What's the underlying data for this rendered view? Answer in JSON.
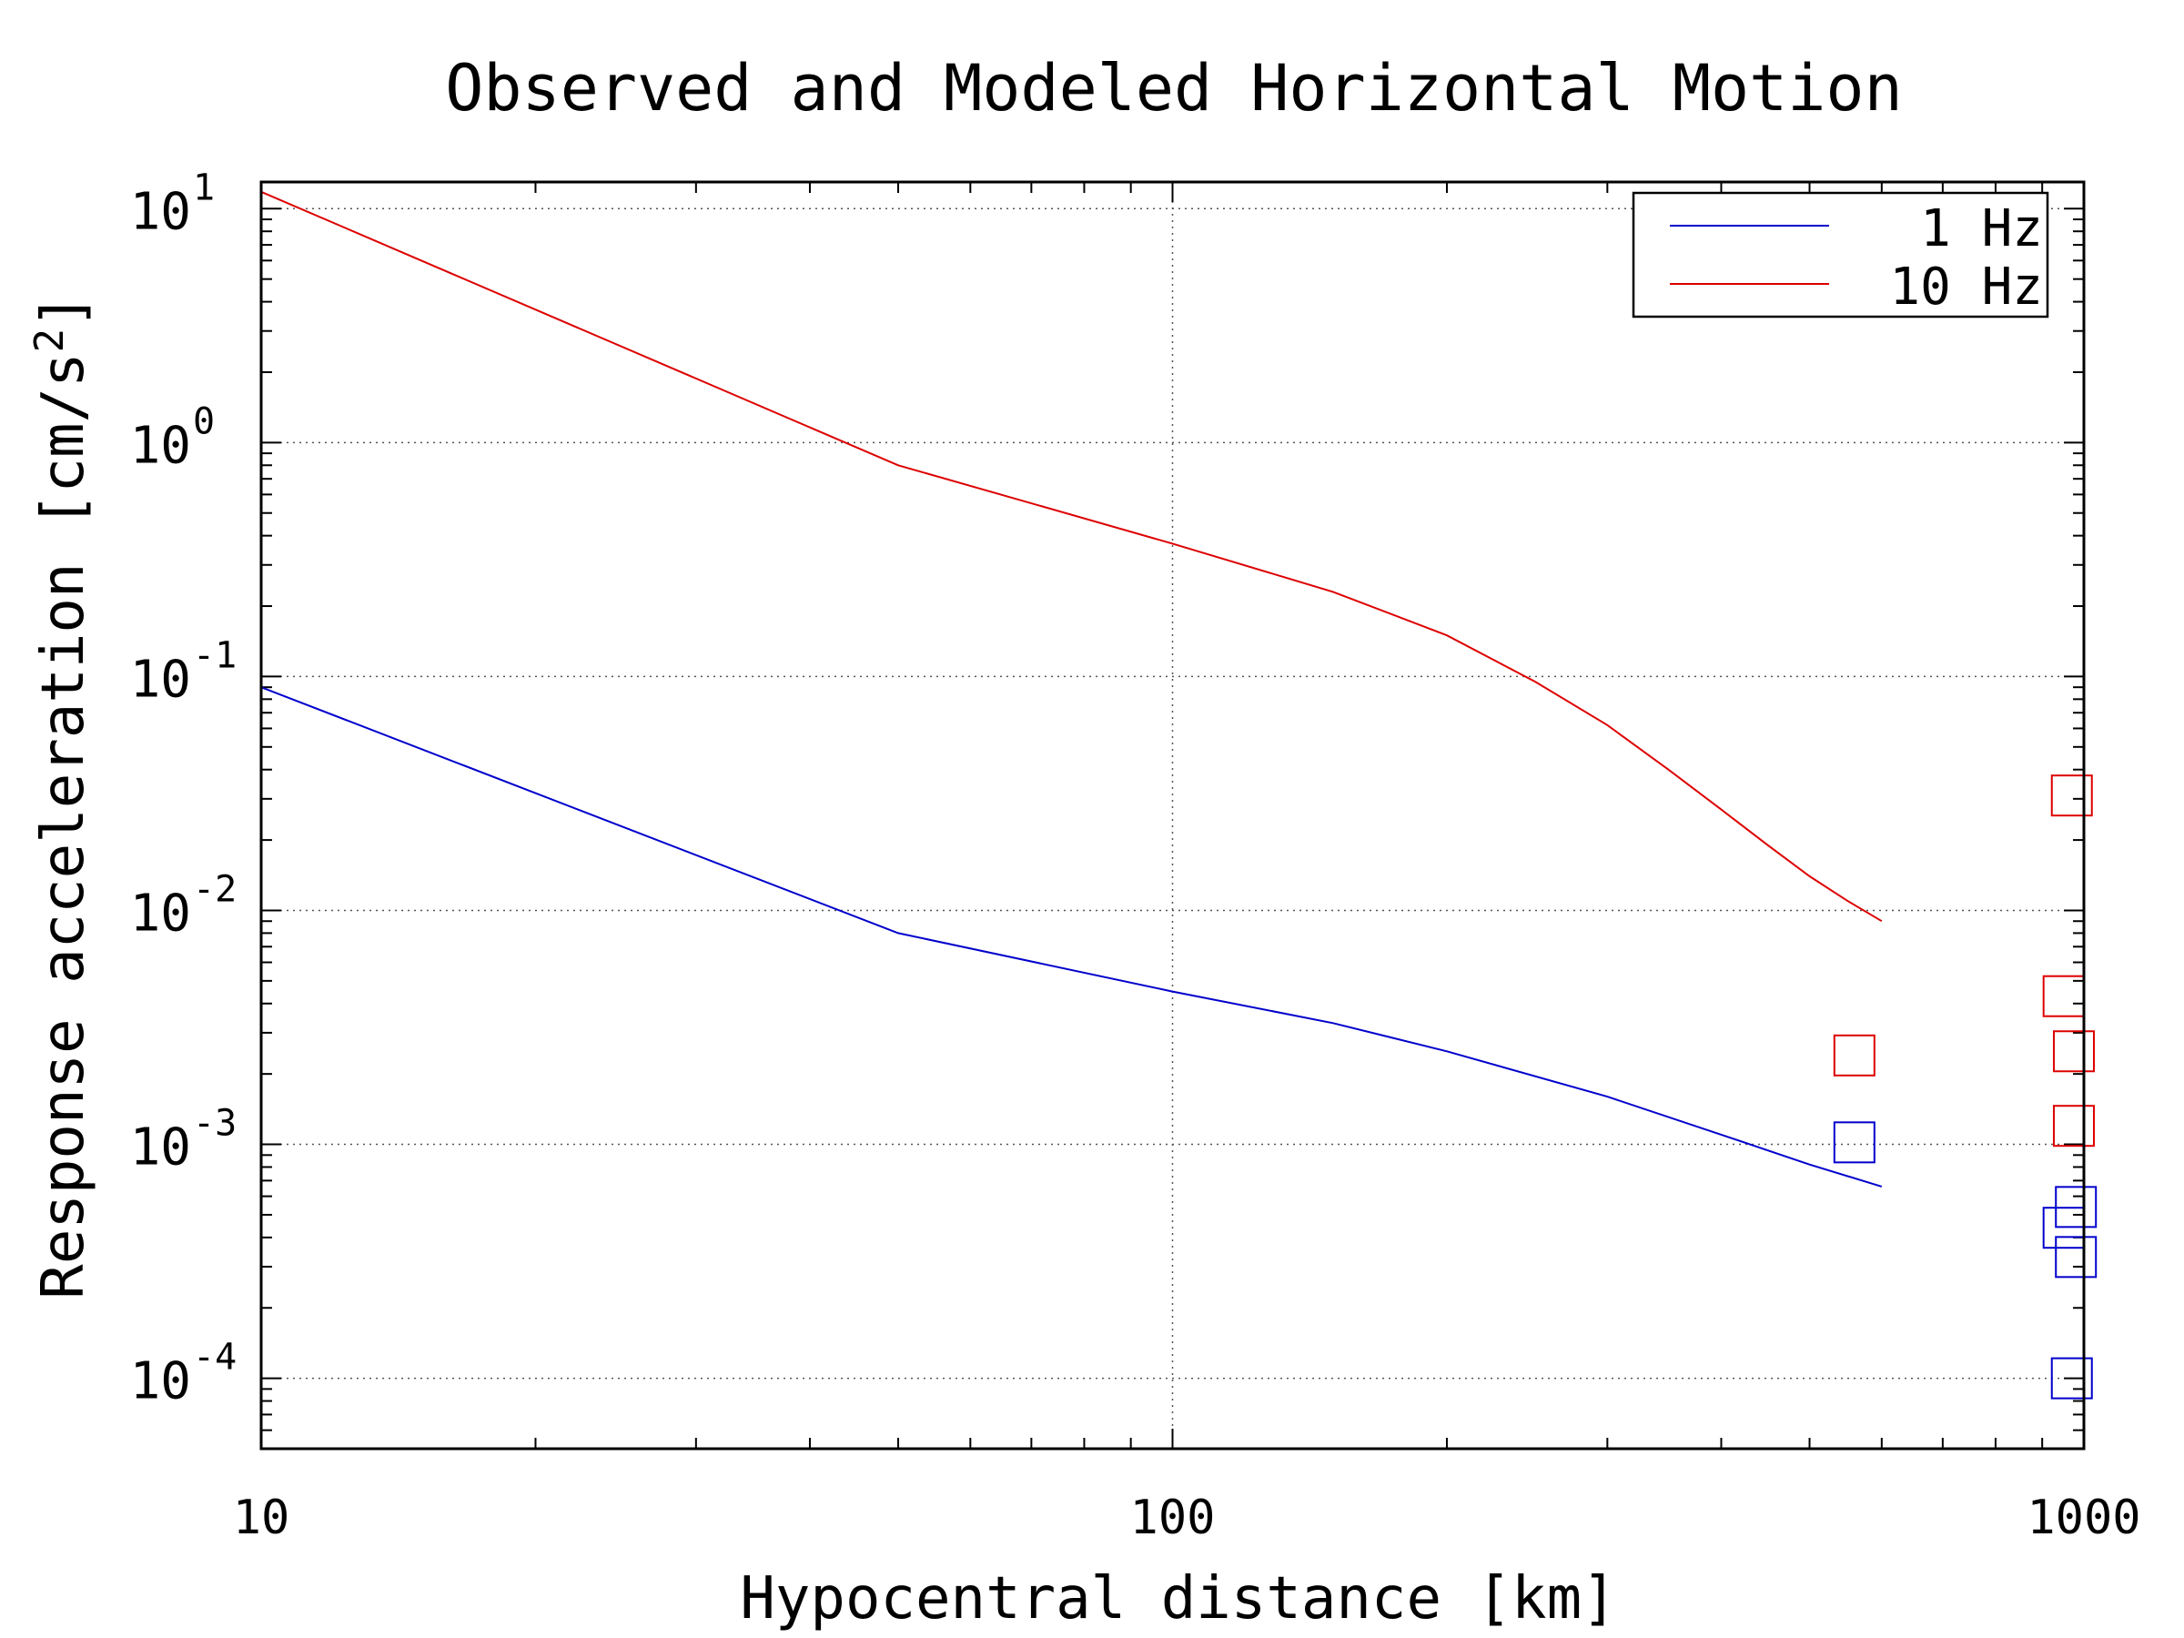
{
  "chart_data": {
    "type": "line",
    "title": "Observed and Modeled Horizontal Motion",
    "xlabel": "Hypocentral distance [km]",
    "ylabel": "Response acceleration [cm/s",
    "ylabel_sup": "2",
    "ylabel_end": "]",
    "xscale": "log",
    "yscale": "log",
    "xlim": [
      10,
      1000
    ],
    "ylim": [
      5e-05,
      13
    ],
    "grid": true,
    "legend_position": "top-right",
    "x_tick_labels": [
      {
        "value": 10,
        "label": "10"
      },
      {
        "value": 100,
        "label": "100"
      },
      {
        "value": 1000,
        "label": "1000"
      }
    ],
    "y_tick_labels": [
      {
        "value": 10,
        "base": "10",
        "exp": "1"
      },
      {
        "value": 1,
        "base": "10",
        "exp": "0"
      },
      {
        "value": 0.1,
        "base": "10",
        "exp": "-1"
      },
      {
        "value": 0.01,
        "base": "10",
        "exp": "-2"
      },
      {
        "value": 0.001,
        "base": "10",
        "exp": "-3"
      },
      {
        "value": 0.0001,
        "base": "10",
        "exp": "-4"
      }
    ],
    "series": [
      {
        "name": "1 Hz",
        "color": "#0000cc",
        "x": [
          10,
          50,
          100,
          150,
          200,
          300,
          400,
          500,
          600
        ],
        "y": [
          0.09,
          0.008,
          0.0045,
          0.0033,
          0.0025,
          0.0016,
          0.0011,
          0.00082,
          0.00066
        ]
      },
      {
        "name": "10 Hz",
        "color": "#dd0000",
        "x": [
          10,
          50,
          100,
          150,
          200,
          250,
          300,
          350,
          400,
          450,
          500,
          550,
          600
        ],
        "y": [
          11.8,
          0.8,
          0.37,
          0.23,
          0.15,
          0.095,
          0.062,
          0.04,
          0.027,
          0.019,
          0.014,
          0.011,
          0.009
        ]
      }
    ],
    "observed": [
      {
        "series": "1 Hz",
        "color": "#0000cc",
        "x": [
          560,
          950,
          970,
          980,
          980
        ],
        "y": [
          0.00102,
          0.00044,
          0.0001,
          0.00054,
          0.00033
        ]
      },
      {
        "series": "10 Hz",
        "color": "#dd0000",
        "x": [
          560,
          950,
          970,
          975,
          975
        ],
        "y": [
          0.0024,
          0.0043,
          0.031,
          0.0025,
          0.0012
        ]
      }
    ]
  }
}
